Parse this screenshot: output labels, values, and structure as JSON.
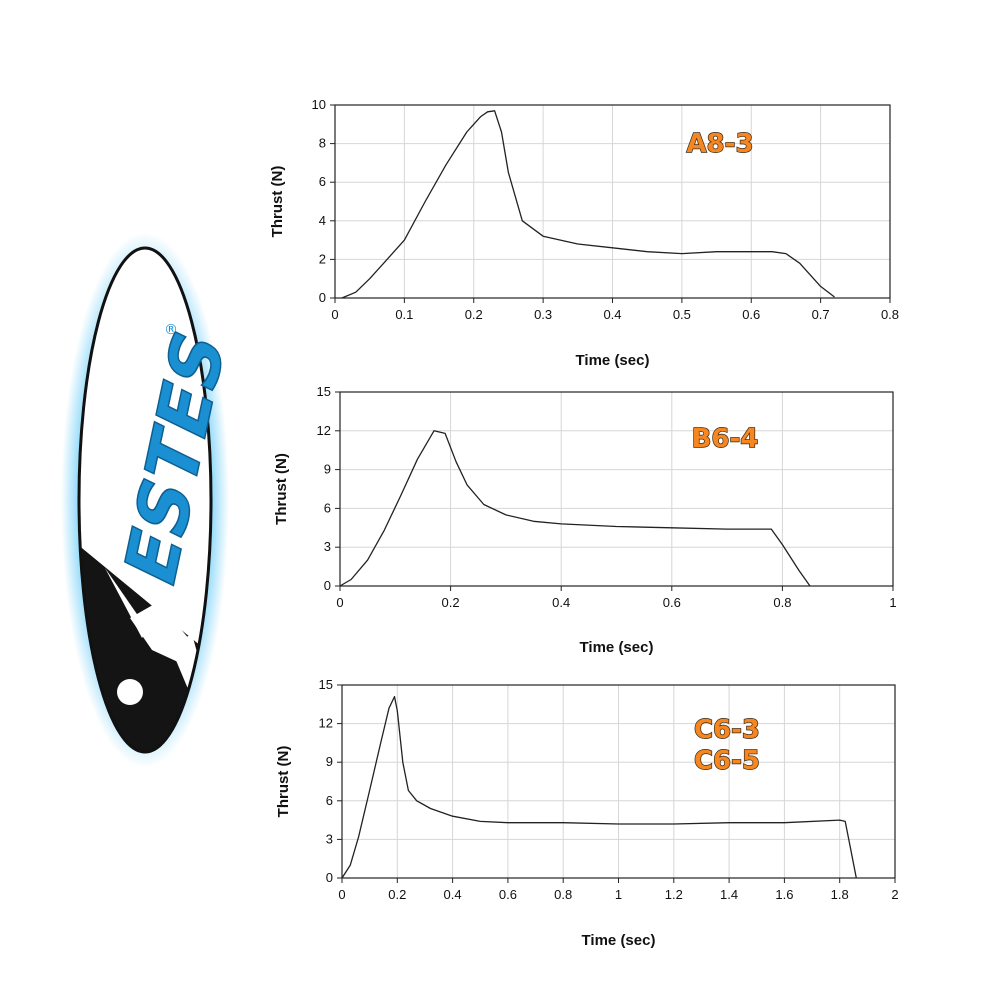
{
  "logo": {
    "brand": "ESTES",
    "registered_mark": "®"
  },
  "chart_data": [
    {
      "type": "line",
      "badge": [
        "A8-3"
      ],
      "xlabel": "Time (sec)",
      "ylabel": "Thrust (N)",
      "xlim": [
        0,
        0.8
      ],
      "ylim": [
        0,
        10
      ],
      "xticks": [
        0,
        0.1,
        0.2,
        0.3,
        0.4,
        0.5,
        0.6,
        0.7,
        0.8
      ],
      "xtick_labels": [
        "0",
        "0.1",
        "0.2",
        "0.3",
        "0.4",
        "0.5",
        "0.6",
        "0.7",
        "0.8"
      ],
      "yticks": [
        0,
        2,
        4,
        6,
        8,
        10
      ],
      "ytick_labels": [
        "0",
        "2",
        "4",
        "6",
        "8",
        "10"
      ],
      "grid": true,
      "series": [
        {
          "x": [
            0.01,
            0.03,
            0.05,
            0.07,
            0.1,
            0.13,
            0.16,
            0.19,
            0.21,
            0.22,
            0.23,
            0.24,
            0.25,
            0.27,
            0.3,
            0.35,
            0.4,
            0.45,
            0.5,
            0.55,
            0.6,
            0.63,
            0.65,
            0.67,
            0.7,
            0.72
          ],
          "y": [
            0,
            0.3,
            1.0,
            1.8,
            3.0,
            5.0,
            6.9,
            8.6,
            9.4,
            9.65,
            9.7,
            8.6,
            6.5,
            4.0,
            3.2,
            2.8,
            2.6,
            2.4,
            2.3,
            2.4,
            2.4,
            2.4,
            2.3,
            1.8,
            0.6,
            0.05
          ]
        }
      ]
    },
    {
      "type": "line",
      "badge": [
        "B6-4"
      ],
      "xlabel": "Time (sec)",
      "ylabel": "Thrust (N)",
      "xlim": [
        0,
        1
      ],
      "ylim": [
        0,
        15
      ],
      "xticks": [
        0,
        0.2,
        0.4,
        0.6,
        0.8,
        1.0
      ],
      "xtick_labels": [
        "0",
        "0.2",
        "0.4",
        "0.6",
        "0.8",
        "1"
      ],
      "yticks": [
        0,
        3,
        6,
        9,
        12,
        15
      ],
      "ytick_labels": [
        "0",
        "3",
        "6",
        "9",
        "12",
        "15"
      ],
      "grid": true,
      "series": [
        {
          "x": [
            0,
            0.02,
            0.05,
            0.08,
            0.11,
            0.14,
            0.17,
            0.19,
            0.21,
            0.23,
            0.26,
            0.3,
            0.35,
            0.4,
            0.5,
            0.6,
            0.7,
            0.78,
            0.8,
            0.83,
            0.85
          ],
          "y": [
            0,
            0.5,
            2.0,
            4.3,
            7.0,
            9.8,
            12.0,
            11.8,
            9.6,
            7.8,
            6.3,
            5.5,
            5.0,
            4.8,
            4.6,
            4.5,
            4.4,
            4.4,
            3.2,
            1.2,
            0
          ]
        }
      ]
    },
    {
      "type": "line",
      "badge": [
        "C6-3",
        "C6-5"
      ],
      "xlabel": "Time (sec)",
      "ylabel": "Thrust (N)",
      "xlim": [
        0,
        2
      ],
      "ylim": [
        0,
        15
      ],
      "xticks": [
        0,
        0.2,
        0.4,
        0.6,
        0.8,
        1.0,
        1.2,
        1.4,
        1.6,
        1.8,
        2.0
      ],
      "xtick_labels": [
        "0",
        "0.2",
        "0.4",
        "0.6",
        "0.8",
        "1",
        "1.2",
        "1.4",
        "1.6",
        "1.8",
        "2"
      ],
      "yticks": [
        0,
        3,
        6,
        9,
        12,
        15
      ],
      "ytick_labels": [
        "0",
        "3",
        "6",
        "9",
        "12",
        "15"
      ],
      "grid": true,
      "series": [
        {
          "x": [
            0,
            0.03,
            0.06,
            0.1,
            0.14,
            0.17,
            0.19,
            0.2,
            0.22,
            0.24,
            0.27,
            0.32,
            0.4,
            0.5,
            0.6,
            0.8,
            1.0,
            1.2,
            1.4,
            1.6,
            1.8,
            1.82,
            1.84,
            1.86
          ],
          "y": [
            0,
            1.0,
            3.2,
            6.8,
            10.5,
            13.2,
            14.1,
            13.0,
            9.0,
            6.8,
            6.0,
            5.4,
            4.8,
            4.4,
            4.3,
            4.3,
            4.2,
            4.2,
            4.3,
            4.3,
            4.5,
            4.4,
            2.2,
            0
          ]
        }
      ]
    }
  ]
}
